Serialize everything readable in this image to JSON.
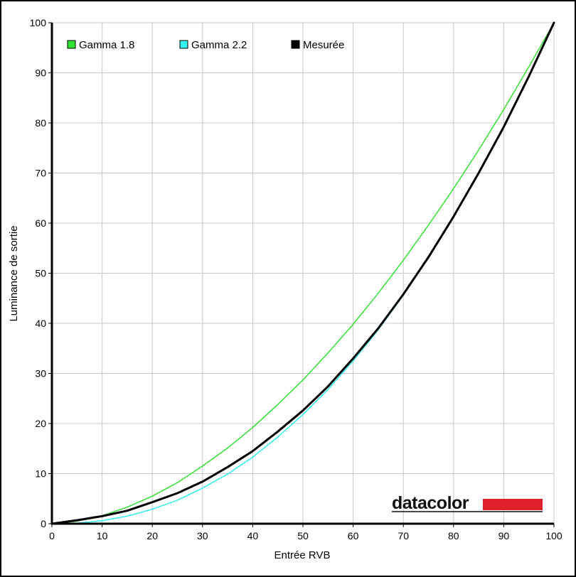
{
  "chart_data": {
    "type": "line",
    "xlabel": "Entrée RVB",
    "ylabel": "Luminance de sortie",
    "xlim": [
      0,
      100
    ],
    "ylim": [
      0,
      100
    ],
    "x_ticks": [
      "0",
      "10",
      "20",
      "30",
      "40",
      "50",
      "60",
      "70",
      "80",
      "90",
      "100"
    ],
    "y_ticks": [
      "0",
      "10",
      "20",
      "30",
      "40",
      "50",
      "60",
      "70",
      "80",
      "90",
      "100"
    ],
    "grid": true,
    "legend_position": "top-left",
    "series": [
      {
        "name": "Gamma 1.8",
        "color": "#33e133",
        "x": [
          0,
          5,
          10,
          15,
          20,
          25,
          30,
          35,
          40,
          45,
          50,
          55,
          60,
          65,
          70,
          75,
          80,
          85,
          90,
          95,
          100
        ],
        "y": [
          0,
          0.5,
          1.6,
          3.3,
          5.5,
          8.2,
          11.5,
          15.1,
          19.2,
          23.8,
          28.7,
          34.1,
          39.8,
          46.0,
          52.6,
          59.6,
          66.9,
          74.6,
          82.7,
          91.2,
          100
        ]
      },
      {
        "name": "Gamma 2.2",
        "color": "#33f0f0",
        "x": [
          0,
          5,
          10,
          15,
          20,
          25,
          30,
          35,
          40,
          45,
          50,
          55,
          60,
          65,
          70,
          75,
          80,
          85,
          90,
          95,
          100
        ],
        "y": [
          0,
          0.1,
          0.6,
          1.5,
          2.9,
          4.7,
          7.1,
          9.9,
          13.3,
          17.3,
          21.8,
          26.8,
          32.5,
          38.7,
          45.6,
          53.1,
          61.2,
          69.9,
          79.3,
          89.3,
          100
        ]
      },
      {
        "name": "Mesurée",
        "color": "#000000",
        "x": [
          0,
          5,
          10,
          15,
          20,
          25,
          30,
          35,
          40,
          45,
          50,
          55,
          60,
          65,
          70,
          75,
          80,
          85,
          90,
          95,
          100
        ],
        "y": [
          0,
          0.7,
          1.5,
          2.6,
          4.3,
          6.1,
          8.4,
          11.3,
          14.5,
          18.4,
          22.6,
          27.4,
          33.0,
          39.0,
          45.8,
          53.2,
          61.3,
          70.0,
          79.2,
          89.3,
          100
        ]
      }
    ]
  },
  "brand": {
    "text": "datacolor",
    "accent_color": "#e0202a"
  }
}
